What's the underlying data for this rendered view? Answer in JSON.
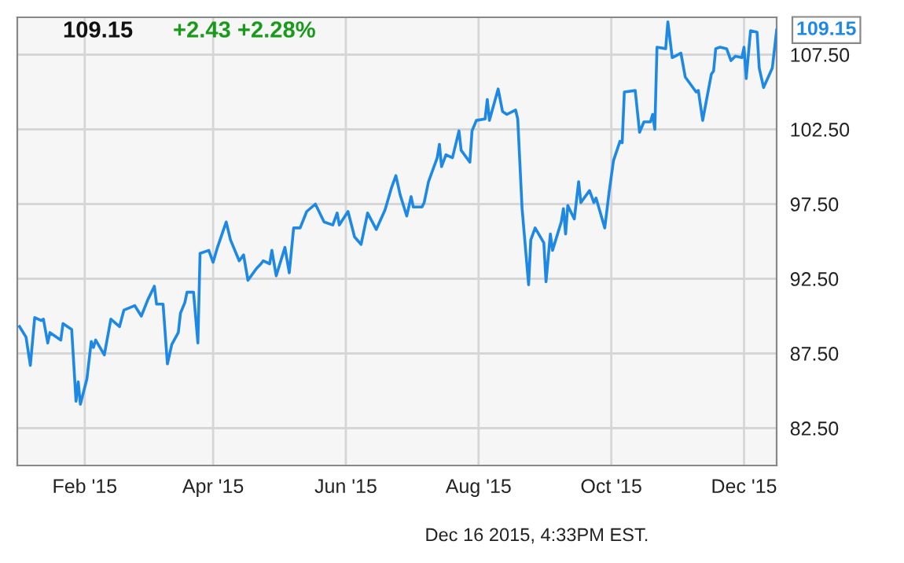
{
  "chart_data": {
    "type": "line",
    "title": "109.15",
    "subtitle": "+2.43 +2.28%",
    "x": [
      "2015-01-02",
      "2015-01-05",
      "2015-01-07",
      "2015-01-09",
      "2015-01-12",
      "2015-01-13",
      "2015-01-15",
      "2015-01-16",
      "2015-01-21",
      "2015-01-22",
      "2015-01-26",
      "2015-01-28",
      "2015-01-29",
      "2015-01-30",
      "2015-02-02",
      "2015-02-04",
      "2015-02-05",
      "2015-02-06",
      "2015-02-10",
      "2015-02-13",
      "2015-02-17",
      "2015-02-19",
      "2015-02-24",
      "2015-02-27",
      "2015-03-02",
      "2015-03-05",
      "2015-03-06",
      "2015-03-09",
      "2015-03-11",
      "2015-03-13",
      "2015-03-16",
      "2015-03-17",
      "2015-03-19",
      "2015-03-20",
      "2015-03-23",
      "2015-03-25",
      "2015-03-26",
      "2015-03-30",
      "2015-04-01",
      "2015-04-03",
      "2015-04-07",
      "2015-04-09",
      "2015-04-13",
      "2015-04-15",
      "2015-04-17",
      "2015-04-21",
      "2015-04-23",
      "2015-04-24",
      "2015-04-27",
      "2015-04-28",
      "2015-04-30",
      "2015-05-04",
      "2015-05-06",
      "2015-05-08",
      "2015-05-11",
      "2015-05-14",
      "2015-05-18",
      "2015-05-22",
      "2015-05-26",
      "2015-05-28",
      "2015-05-29",
      "2015-06-02",
      "2015-06-05",
      "2015-06-08",
      "2015-06-11",
      "2015-06-15",
      "2015-06-19",
      "2015-06-22",
      "2015-06-24",
      "2015-06-26",
      "2015-06-29",
      "2015-07-01",
      "2015-07-02",
      "2015-07-06",
      "2015-07-07",
      "2015-07-09",
      "2015-07-13",
      "2015-07-14",
      "2015-07-15",
      "2015-07-17",
      "2015-07-20",
      "2015-07-23",
      "2015-07-24",
      "2015-07-28",
      "2015-07-29",
      "2015-07-31",
      "2015-08-04",
      "2015-08-05",
      "2015-08-06",
      "2015-08-10",
      "2015-08-12",
      "2015-08-14",
      "2015-08-18",
      "2015-08-19",
      "2015-08-21",
      "2015-08-24",
      "2015-08-25",
      "2015-08-27",
      "2015-08-31",
      "2015-09-01",
      "2015-09-03",
      "2015-09-04",
      "2015-09-08",
      "2015-09-09",
      "2015-09-10",
      "2015-09-11",
      "2015-09-14",
      "2015-09-16",
      "2015-09-17",
      "2015-09-21",
      "2015-09-23",
      "2015-09-24",
      "2015-09-28",
      "2015-09-30",
      "2015-10-02",
      "2015-10-05",
      "2015-10-06",
      "2015-10-07",
      "2015-10-12",
      "2015-10-14",
      "2015-10-16",
      "2015-10-19",
      "2015-10-20",
      "2015-10-21",
      "2015-10-22",
      "2015-10-26",
      "2015-10-27",
      "2015-10-29",
      "2015-11-02",
      "2015-11-04",
      "2015-11-09",
      "2015-11-10",
      "2015-11-12",
      "2015-11-16",
      "2015-11-17",
      "2015-11-18",
      "2015-11-20",
      "2015-11-23",
      "2015-11-25",
      "2015-11-27",
      "2015-11-30",
      "2015-12-01",
      "2015-12-02",
      "2015-12-04",
      "2015-12-07",
      "2015-12-08",
      "2015-12-10",
      "2015-12-14",
      "2015-12-16"
    ],
    "series": [
      {
        "color": "#1e88e5",
        "values": [
          89.3,
          88.6,
          86.7,
          89.9,
          89.7,
          89.8,
          88.2,
          88.9,
          88.4,
          89.5,
          89.1,
          84.3,
          85.6,
          84.1,
          85.8,
          88.3,
          87.9,
          88.4,
          87.4,
          89.8,
          89.3,
          90.4,
          90.7,
          90.0,
          91.1,
          92.0,
          90.8,
          90.8,
          86.8,
          88.1,
          88.9,
          90.2,
          90.9,
          91.6,
          91.6,
          88.2,
          94.2,
          94.4,
          93.6,
          94.6,
          96.3,
          95.1,
          93.7,
          94.1,
          92.4,
          93.2,
          93.5,
          93.7,
          93.5,
          94.4,
          92.7,
          94.6,
          92.9,
          95.9,
          95.9,
          97.0,
          97.5,
          96.3,
          96.1,
          96.9,
          96.1,
          97.0,
          95.3,
          94.8,
          96.9,
          95.8,
          97.1,
          98.6,
          99.4,
          98.1,
          96.7,
          98.0,
          97.3,
          97.3,
          97.6,
          99.0,
          100.6,
          101.5,
          100.0,
          100.8,
          100.6,
          102.4,
          101.1,
          100.3,
          102.4,
          103.1,
          103.2,
          104.5,
          103.1,
          105.2,
          103.7,
          103.5,
          103.8,
          103.2,
          97.2,
          92.1,
          95.1,
          95.9,
          94.9,
          92.3,
          95.5,
          94.4,
          96.3,
          97.2,
          95.5,
          97.4,
          96.5,
          99.0,
          97.6,
          98.4,
          97.6,
          97.9,
          95.9,
          98.3,
          100.4,
          101.7,
          101.6,
          105.0,
          105.1,
          102.3,
          103.0,
          103.0,
          103.5,
          102.5,
          108.0,
          107.9,
          109.7,
          107.3,
          107.6,
          106.0,
          105.0,
          105.1,
          103.1,
          106.2,
          106.4,
          107.9,
          108.0,
          107.9,
          107.1,
          107.4,
          107.3,
          108.0,
          105.9,
          109.1,
          109.0,
          106.6,
          105.3,
          106.6,
          109.15
        ]
      }
    ],
    "xlim": [
      "2015-01-01",
      "2015-12-16"
    ],
    "xticks": [
      {
        "value": "2015-02-01",
        "label": "Feb '15"
      },
      {
        "value": "2015-04-01",
        "label": "Apr '15"
      },
      {
        "value": "2015-06-01",
        "label": "Jun '15"
      },
      {
        "value": "2015-08-01",
        "label": "Aug '15"
      },
      {
        "value": "2015-10-01",
        "label": "Oct '15"
      },
      {
        "value": "2015-12-01",
        "label": "Dec '15"
      }
    ],
    "ylim": [
      80,
      110
    ],
    "yticks": [
      {
        "value": 82.5,
        "label": "82.50"
      },
      {
        "value": 87.5,
        "label": "87.50"
      },
      {
        "value": 92.5,
        "label": "92.50"
      },
      {
        "value": 97.5,
        "label": "97.50"
      },
      {
        "value": 102.5,
        "label": "102.50"
      },
      {
        "value": 107.5,
        "label": "107.50"
      }
    ],
    "grid": true,
    "annotations": [
      {
        "text": "109.15",
        "x": "2015-12-16",
        "y": 109.15
      },
      "Dec 16 2015, 4:33PM EST."
    ]
  }
}
